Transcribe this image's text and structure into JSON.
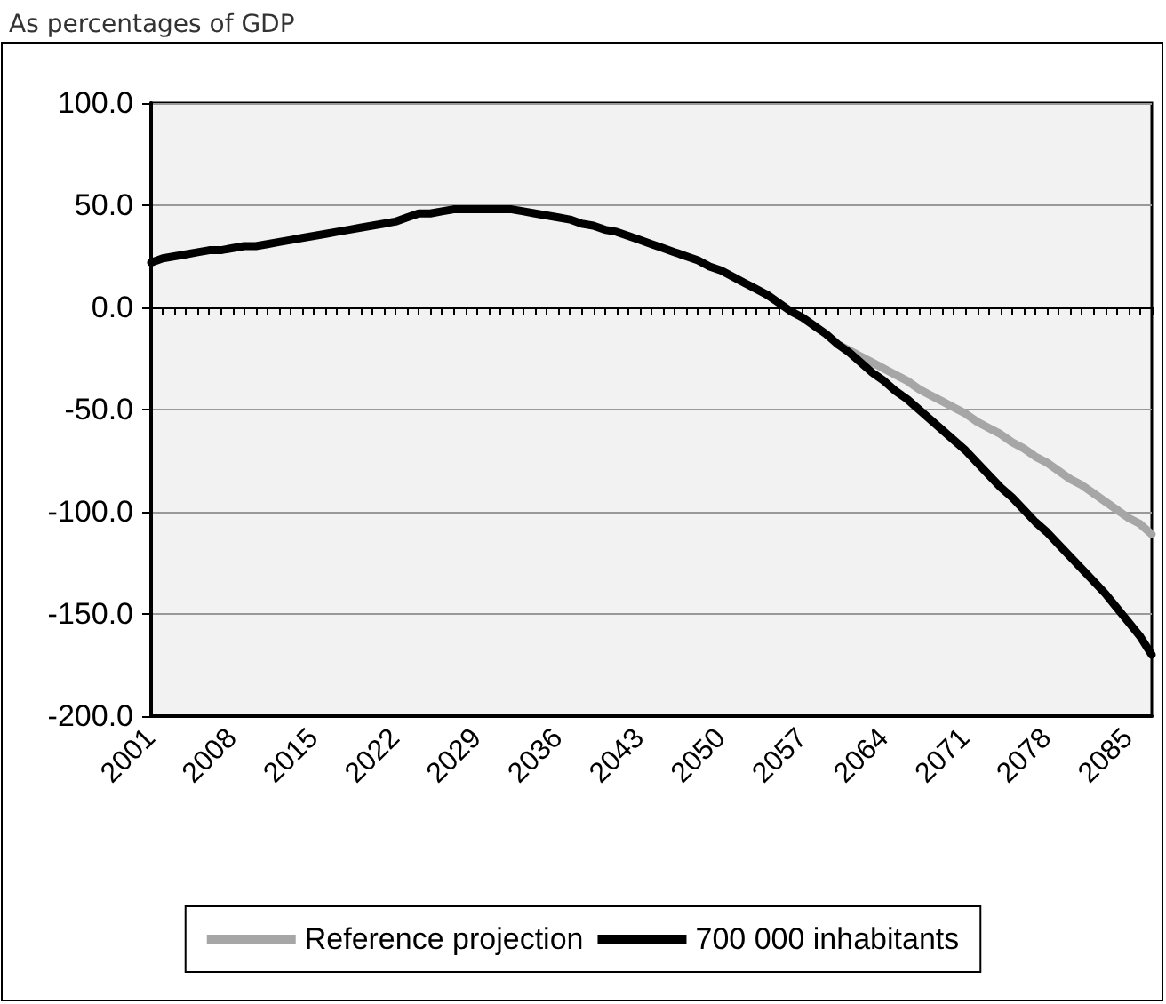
{
  "chart_data": {
    "type": "line",
    "title": "As percentages of GDP",
    "categories": [
      "2001",
      null,
      null,
      null,
      null,
      null,
      null,
      "2008",
      null,
      null,
      null,
      null,
      null,
      null,
      "2015",
      null,
      null,
      null,
      null,
      null,
      null,
      "2022",
      null,
      null,
      null,
      null,
      null,
      null,
      "2029",
      null,
      null,
      null,
      null,
      null,
      null,
      "2036",
      null,
      null,
      null,
      null,
      null,
      null,
      "2043",
      null,
      null,
      null,
      null,
      null,
      null,
      "2050",
      null,
      null,
      null,
      null,
      null,
      null,
      "2057",
      null,
      null,
      null,
      null,
      null,
      null,
      "2064",
      null,
      null,
      null,
      null,
      null,
      null,
      "2071",
      null,
      null,
      null,
      null,
      null,
      null,
      "2078",
      null,
      null,
      null,
      null,
      null,
      null,
      "2085",
      null,
      null
    ],
    "series": [
      {
        "name": "Reference projection",
        "color": "#a6a6a6",
        "values": [
          null,
          null,
          null,
          null,
          null,
          null,
          null,
          null,
          null,
          null,
          null,
          null,
          null,
          null,
          null,
          null,
          null,
          null,
          null,
          null,
          null,
          null,
          null,
          null,
          null,
          null,
          null,
          null,
          null,
          null,
          null,
          null,
          null,
          null,
          null,
          null,
          null,
          null,
          null,
          null,
          null,
          null,
          null,
          null,
          null,
          null,
          null,
          null,
          null,
          null,
          null,
          null,
          null,
          null,
          null,
          null,
          null,
          null,
          null,
          -18,
          -21,
          -24,
          -27,
          -30,
          -33,
          -36,
          -40,
          -43,
          -46,
          -49,
          -52,
          -56,
          -59,
          -62,
          -66,
          -69,
          -73,
          -76,
          -80,
          -84,
          -87,
          -91,
          -95,
          -99,
          -103,
          -106,
          -111
        ]
      },
      {
        "name": "700 000 inhabitants",
        "color": "#000000",
        "values": [
          22,
          24,
          25,
          26,
          27,
          28,
          28,
          29,
          30,
          30,
          31,
          32,
          33,
          34,
          35,
          36,
          37,
          38,
          39,
          40,
          41,
          42,
          44,
          46,
          46,
          47,
          48,
          48,
          48,
          48,
          48,
          48,
          47,
          46,
          45,
          44,
          43,
          41,
          40,
          38,
          37,
          35,
          33,
          31,
          29,
          27,
          25,
          23,
          20,
          18,
          15,
          12,
          9,
          6,
          2,
          -2,
          -5,
          -9,
          -13,
          -18,
          -22,
          -27,
          -32,
          -36,
          -41,
          -45,
          -50,
          -55,
          -60,
          -65,
          -70,
          -76,
          -82,
          -88,
          -93,
          -99,
          -105,
          -110,
          -116,
          -122,
          -128,
          -134,
          -140,
          -147,
          -154,
          -161,
          -170
        ]
      }
    ],
    "ylim": [
      -200,
      100
    ],
    "yticks": [
      {
        "value": -200,
        "label": "-200.0"
      },
      {
        "value": -150,
        "label": "-150.0"
      },
      {
        "value": -100,
        "label": "-100.0"
      },
      {
        "value": -50,
        "label": "-50.0"
      },
      {
        "value": 0,
        "label": "0.0"
      },
      {
        "value": 50,
        "label": "50.0"
      },
      {
        "value": 100,
        "label": "100.0"
      }
    ],
    "grid": "y",
    "legend": "bottom",
    "marker": "none",
    "line_style": "solid"
  }
}
